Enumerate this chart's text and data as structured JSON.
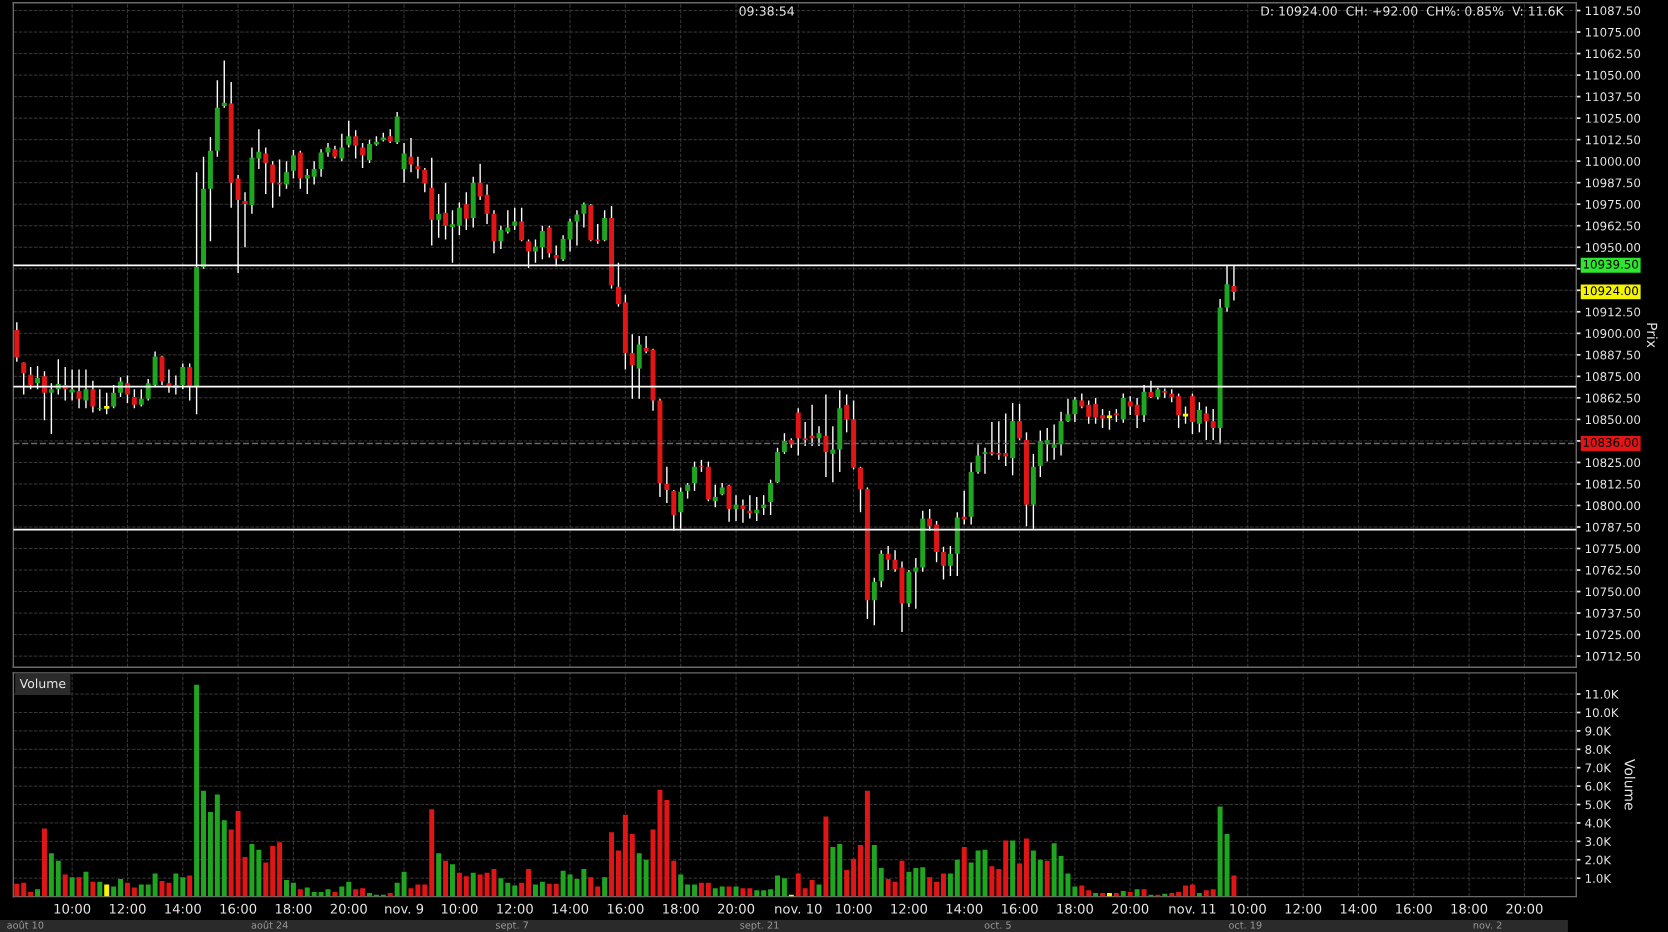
{
  "chart_data": [
    {
      "type": "candlestick",
      "categories": [
        null,
        null,
        null,
        null,
        null,
        null,
        null,
        null,
        null,
        null,
        null,
        null,
        null,
        null,
        null,
        null,
        null,
        null,
        null,
        null,
        null,
        null,
        null,
        null,
        null,
        null,
        null,
        null,
        null,
        null,
        null,
        null,
        null,
        null,
        null,
        null,
        null,
        null,
        null,
        null,
        null,
        null,
        null,
        null,
        null,
        null,
        null,
        null,
        null,
        null,
        null,
        null,
        null,
        null,
        null,
        null,
        null,
        null,
        null,
        null,
        null,
        null,
        null,
        null,
        null,
        null,
        null,
        null,
        null,
        null,
        null,
        null,
        null,
        null,
        null,
        null,
        null,
        null,
        null,
        null,
        null,
        null,
        null,
        null,
        null,
        null,
        null,
        null,
        null,
        null,
        null,
        null,
        null,
        null,
        null,
        null,
        null,
        null,
        null,
        null,
        null,
        null,
        null,
        null,
        null,
        null,
        null,
        null,
        null,
        null,
        null,
        null,
        null,
        null,
        null,
        null,
        null,
        null,
        null,
        null,
        null,
        null,
        null,
        null,
        null,
        null,
        null,
        null,
        null,
        null,
        null,
        null,
        null,
        null,
        null,
        null,
        null,
        null,
        null,
        null,
        null,
        null,
        null,
        null,
        null,
        null,
        null,
        null,
        null,
        null,
        null,
        null,
        null,
        null,
        null,
        null,
        null,
        null,
        null,
        null,
        null,
        null,
        null,
        null,
        null,
        null,
        null,
        null,
        null,
        null,
        null,
        null,
        null,
        null,
        null,
        null,
        null,
        null,
        null,
        null,
        null,
        null,
        null,
        null,
        null,
        null,
        null,
        null,
        null,
        null,
        null,
        null,
        null,
        null,
        null,
        null,
        null,
        null,
        null,
        null,
        null,
        null,
        null,
        null,
        null,
        null,
        null,
        null,
        null,
        null,
        null,
        null,
        null,
        null,
        null,
        null,
        null,
        null,
        null,
        null,
        null,
        null,
        null,
        null,
        null,
        null
      ],
      "ohlc": [
        [
          10902,
          10906.5,
          10883.5,
          10886
        ],
        [
          10883,
          10883,
          10864.5,
          10877
        ],
        [
          10876,
          10880.5,
          10867.5,
          10870
        ],
        [
          10871,
          10881,
          10867.5,
          10874
        ],
        [
          10875,
          10878,
          10849.5,
          10865.5
        ],
        [
          10865.5,
          10871,
          10841.5,
          10867.5
        ],
        [
          10867.5,
          10885,
          10864.5,
          10870.5
        ],
        [
          10870,
          10880.5,
          10861,
          10867.5
        ],
        [
          10866.5,
          10879,
          10861,
          10866.5
        ],
        [
          10866.5,
          10879,
          10856.5,
          10862
        ],
        [
          10861,
          10879,
          10856.5,
          10867.5
        ],
        [
          10867.5,
          10872.5,
          10854,
          10857.5
        ],
        [
          10856,
          10867.5,
          10855,
          10856.5
        ],
        [
          10857,
          10865.5,
          10853,
          10857
        ],
        [
          10857.5,
          10870,
          10856.5,
          10865.5
        ],
        [
          10865.5,
          10874.5,
          10863,
          10872
        ],
        [
          10871,
          10875.5,
          10859.5,
          10864.5
        ],
        [
          10863,
          10867.5,
          10856.5,
          10858.5
        ],
        [
          10858.5,
          10867.5,
          10857.5,
          10862
        ],
        [
          10862,
          10873.5,
          10861,
          10871
        ],
        [
          10870,
          10889.5,
          10869,
          10886.5
        ],
        [
          10886.5,
          10887,
          10870,
          10872
        ],
        [
          10871,
          10879,
          10865.5,
          10869
        ],
        [
          10869,
          10875.5,
          10864.5,
          10869
        ],
        [
          10870,
          10882.5,
          10867.5,
          10880.5
        ],
        [
          10880.5,
          10882.5,
          10861,
          10869
        ],
        [
          10869,
          10993.5,
          10853,
          10938.5
        ],
        [
          10938.5,
          11002.5,
          10937.5,
          10984
        ],
        [
          10984,
          11014,
          10953.5,
          11006
        ],
        [
          11006,
          11047,
          11002.5,
          11031
        ],
        [
          11032,
          11058.5,
          11031,
          11034
        ],
        [
          11033.5,
          11046,
          10973,
          10987.5
        ],
        [
          10990,
          10992,
          10935,
          10977.5
        ],
        [
          10976,
          10982,
          10950,
          10976
        ],
        [
          10974.5,
          11008,
          10969.5,
          11002
        ],
        [
          11001.5,
          11018.5,
          10995.5,
          11005.5
        ],
        [
          11004.5,
          11008,
          10981,
          10999
        ],
        [
          10998,
          11000,
          10973,
          10987.5
        ],
        [
          10987.5,
          11001,
          10979.5,
          10986.5
        ],
        [
          10986.5,
          11000,
          10984,
          10993.5
        ],
        [
          10994.5,
          11006.5,
          10990,
          11003.5
        ],
        [
          11005,
          11006,
          10984,
          10990
        ],
        [
          10990,
          10995.5,
          10981,
          10992
        ],
        [
          10991,
          11000,
          10986.5,
          10995.5
        ],
        [
          10995.5,
          11007,
          10991,
          11005
        ],
        [
          11005,
          11010.5,
          11002.5,
          11008
        ],
        [
          11007,
          11009,
          11001.5,
          11002.5
        ],
        [
          11001.5,
          11016,
          11000,
          11008
        ],
        [
          11009.5,
          11023.5,
          11008,
          11014.5
        ],
        [
          11014.5,
          11018,
          11001.5,
          11009
        ],
        [
          11008,
          11010.5,
          10996,
          11003.5
        ],
        [
          11000.5,
          11012.5,
          10999,
          11010
        ],
        [
          11010.5,
          11014.5,
          11009,
          11010.5
        ],
        [
          11013,
          11016.5,
          11011.5,
          11013
        ],
        [
          11014.5,
          11018.5,
          11010.5,
          11011.5
        ],
        [
          11011,
          11028.5,
          11010,
          11026
        ],
        [
          10995.5,
          11010.5,
          10987.5,
          11004.5
        ],
        [
          11002.5,
          11013.5,
          10993.5,
          10998
        ],
        [
          10997,
          11002.5,
          10990,
          10995.5
        ],
        [
          10995,
          10996,
          10982,
          10987
        ],
        [
          10984.5,
          11002,
          10951,
          10966
        ],
        [
          10966,
          10981,
          10955.5,
          10969.5
        ],
        [
          10970,
          10987.5,
          10954.5,
          10962.5
        ],
        [
          10962.5,
          10971.5,
          10941,
          10962.5
        ],
        [
          10962.5,
          10976,
          10957,
          10973
        ],
        [
          10975,
          10982,
          10960,
          10966.5
        ],
        [
          10967,
          10991,
          10961.5,
          10987.5
        ],
        [
          10987.5,
          10998.5,
          10977.5,
          10979.5
        ],
        [
          10980.5,
          10986.5,
          10963.5,
          10969.5
        ],
        [
          10969.5,
          10971.5,
          10946.5,
          10953.5
        ],
        [
          10953.5,
          10962.5,
          10949,
          10960
        ],
        [
          10959,
          10971.5,
          10958,
          10961.5
        ],
        [
          10962.5,
          10973,
          10960,
          10965
        ],
        [
          10965,
          10973,
          10953.5,
          10954
        ],
        [
          10953.5,
          10954.5,
          10938,
          10947.5
        ],
        [
          10947.5,
          10954.5,
          10941,
          10950.5
        ],
        [
          10950,
          10962.5,
          10943,
          10959.5
        ],
        [
          10961.5,
          10962.5,
          10944,
          10946.5
        ],
        [
          10945.5,
          10951,
          10939,
          10943.5
        ],
        [
          10943,
          10957,
          10942,
          10955
        ],
        [
          10954.5,
          10966.5,
          10947.5,
          10965
        ],
        [
          10965,
          10971.5,
          10951,
          10969
        ],
        [
          10969.5,
          10976,
          10961.5,
          10975
        ],
        [
          10974.5,
          10975,
          10953.5,
          10954
        ],
        [
          10954.5,
          10963.5,
          10952,
          10953.5
        ],
        [
          10954,
          10971.5,
          10953.5,
          10967
        ],
        [
          10967,
          10974,
          10926,
          10928
        ],
        [
          10927,
          10941,
          10915.5,
          10917
        ],
        [
          10918,
          10922.5,
          10879,
          10888.5
        ],
        [
          10888.5,
          10899.5,
          10862,
          10881.5
        ],
        [
          10879.5,
          10898.5,
          10862,
          10893.5
        ],
        [
          10891.5,
          10898.5,
          10888.5,
          10889.5
        ],
        [
          10890.5,
          10891,
          10855,
          10861
        ],
        [
          10861,
          10862,
          10805,
          10813
        ],
        [
          10812.5,
          10822.5,
          10801.5,
          10809
        ],
        [
          10808.5,
          10809,
          10785.5,
          10794.5
        ],
        [
          10796,
          10810.5,
          10786.5,
          10808
        ],
        [
          10808.5,
          10813,
          10804,
          10812
        ],
        [
          10813,
          10825.5,
          10808.5,
          10822.5
        ],
        [
          10823,
          10826.5,
          10819.5,
          10822.5
        ],
        [
          10822.5,
          10825.5,
          10802.5,
          10803.5
        ],
        [
          10802.5,
          10812,
          10799,
          10805
        ],
        [
          10806.5,
          10813,
          10806,
          10810.5
        ],
        [
          10811.5,
          10812,
          10790.5,
          10798
        ],
        [
          10798,
          10806,
          10791,
          10800.5
        ],
        [
          10800,
          10803.5,
          10790,
          10798
        ],
        [
          10797,
          10806,
          10792.5,
          10795.5
        ],
        [
          10795.5,
          10805,
          10791,
          10797.5
        ],
        [
          10798.5,
          10806,
          10794.5,
          10800.5
        ],
        [
          10802,
          10815,
          10794.5,
          10813
        ],
        [
          10813.5,
          10833.5,
          10813,
          10831
        ],
        [
          10831,
          10842,
          10830,
          10837.5
        ],
        [
          10838,
          10839,
          10833.5,
          10835.5
        ],
        [
          10854,
          10856.5,
          10829,
          10839
        ],
        [
          10839,
          10848.5,
          10834.5,
          10838
        ],
        [
          10840.5,
          10858.5,
          10834.5,
          10839
        ],
        [
          10839,
          10846,
          10834.5,
          10842
        ],
        [
          10840.5,
          10864.5,
          10816.5,
          10831
        ],
        [
          10830,
          10846,
          10813.5,
          10832.5
        ],
        [
          10832.5,
          10867,
          10819.5,
          10856.5
        ],
        [
          10858.5,
          10864.5,
          10842.5,
          10850
        ],
        [
          10850,
          10861,
          10821,
          10822
        ],
        [
          10822,
          10822.5,
          10796,
          10809.5
        ],
        [
          10809.5,
          10810.5,
          10734,
          10745
        ],
        [
          10745,
          10758,
          10730.5,
          10755.5
        ],
        [
          10756,
          10774,
          10752.5,
          10772
        ],
        [
          10772,
          10776.5,
          10762.5,
          10768.5
        ],
        [
          10768.5,
          10774,
          10761.5,
          10763
        ],
        [
          10764,
          10767.5,
          10726.5,
          10743
        ],
        [
          10743,
          10762.5,
          10741,
          10761.5
        ],
        [
          10761.5,
          10769.5,
          10740,
          10764
        ],
        [
          10764,
          10797,
          10761.5,
          10792.5
        ],
        [
          10792.5,
          10798,
          10785.5,
          10788
        ],
        [
          10789,
          10791,
          10767,
          10773
        ],
        [
          10773,
          10776,
          10757,
          10765
        ],
        [
          10765,
          10776.5,
          10759,
          10772
        ],
        [
          10772,
          10796,
          10759,
          10793
        ],
        [
          10793.5,
          10808.5,
          10789,
          10792
        ],
        [
          10793.5,
          10825,
          10789,
          10819.5
        ],
        [
          10819.5,
          10835.5,
          10818.5,
          10829
        ],
        [
          10830,
          10833.5,
          10818.5,
          10831
        ],
        [
          10831,
          10848.5,
          10829,
          10830
        ],
        [
          10830.5,
          10849,
          10826.5,
          10829.5
        ],
        [
          10830.5,
          10853.5,
          10823,
          10828.5
        ],
        [
          10827.5,
          10859.5,
          10817.5,
          10849
        ],
        [
          10849,
          10859,
          10838,
          10839
        ],
        [
          10838,
          10842.5,
          10788,
          10800.5
        ],
        [
          10800.5,
          10830,
          10786.5,
          10822.5
        ],
        [
          10823,
          10843.5,
          10816.5,
          10837.5
        ],
        [
          10835.5,
          10845,
          10825.5,
          10838
        ],
        [
          10833.5,
          10847,
          10826.5,
          10835.5
        ],
        [
          10835.5,
          10854.5,
          10829,
          10849
        ],
        [
          10849,
          10862,
          10848.5,
          10853
        ],
        [
          10853,
          10863,
          10848.5,
          10861.5
        ],
        [
          10861,
          10865,
          10856.5,
          10857.5
        ],
        [
          10858.5,
          10861,
          10847.5,
          10851.5
        ],
        [
          10859,
          10862.5,
          10847.5,
          10851
        ],
        [
          10852.5,
          10856,
          10845,
          10850.5
        ],
        [
          10851.5,
          10855,
          10844,
          10851.5
        ],
        [
          10853.5,
          10856,
          10848.5,
          10852.5
        ],
        [
          10850,
          10865,
          10848,
          10862.5
        ],
        [
          10860.5,
          10863.5,
          10852.5,
          10857.5
        ],
        [
          10858.5,
          10862.5,
          10845,
          10852.5
        ],
        [
          10852.5,
          10870,
          10848.5,
          10866
        ],
        [
          10866,
          10872.5,
          10862.5,
          10863
        ],
        [
          10863,
          10868.5,
          10861.5,
          10867.5
        ],
        [
          10866.5,
          10868,
          10862.5,
          10865.5
        ],
        [
          10865,
          10867.5,
          10860,
          10863
        ],
        [
          10863.5,
          10865,
          10845,
          10852.5
        ],
        [
          10852.5,
          10857.5,
          10847.5,
          10852.5
        ],
        [
          10863.5,
          10865,
          10841.5,
          10848.5
        ],
        [
          10847.5,
          10860,
          10842.5,
          10855.5
        ],
        [
          10853.5,
          10857.5,
          10838,
          10849
        ],
        [
          10849,
          10856,
          10838,
          10845
        ],
        [
          10845,
          10920,
          10835.5,
          10915
        ],
        [
          10915,
          10939.5,
          10912.5,
          10928.5
        ],
        [
          10927.5,
          10939.5,
          10919,
          10924
        ],
        null,
        null,
        null,
        null,
        null,
        null,
        null,
        null,
        null,
        null,
        null,
        null,
        null,
        null,
        null,
        null,
        null,
        null,
        null,
        null,
        null,
        null,
        null,
        null,
        null,
        null,
        null,
        null,
        null,
        null,
        null,
        null,
        null,
        null,
        null,
        null,
        null,
        null,
        null,
        null,
        null,
        null,
        null,
        null,
        null,
        null,
        null,
        null,
        null
      ],
      "colors": [
        "#e01515",
        "#e01515",
        "#e01515",
        "#1fa51f",
        "#e01515",
        "#1fa51f",
        "#1fa51f",
        "#e01515",
        "#1fa51f",
        "#e01515",
        "#1fa51f",
        "#e01515",
        "#1fa51f",
        "#f5f500",
        "#1fa51f",
        "#1fa51f",
        "#e01515",
        "#e01515",
        "#1fa51f",
        "#1fa51f",
        "#1fa51f",
        "#e01515",
        "#e01515",
        "#1fa51f",
        "#1fa51f",
        "#e01515",
        "#1fa51f",
        "#1fa51f",
        "#1fa51f",
        "#1fa51f",
        "#1fa51f",
        "#e01515",
        "#e01515",
        "#e01515",
        "#1fa51f",
        "#1fa51f",
        "#e01515",
        "#e01515",
        "#e01515",
        "#1fa51f",
        "#1fa51f",
        "#e01515",
        "#1fa51f",
        "#1fa51f",
        "#1fa51f",
        "#1fa51f",
        "#e01515",
        "#1fa51f",
        "#1fa51f",
        "#e01515",
        "#e01515",
        "#1fa51f",
        "#1fa51f",
        "#1fa51f",
        "#e01515",
        "#1fa51f",
        "#1fa51f",
        "#e01515",
        "#e01515",
        "#e01515",
        "#e01515",
        "#1fa51f",
        "#e01515",
        "#1fa51f",
        "#1fa51f",
        "#e01515",
        "#1fa51f",
        "#e01515",
        "#e01515",
        "#e01515",
        "#1fa51f",
        "#1fa51f",
        "#1fa51f",
        "#e01515",
        "#e01515",
        "#1fa51f",
        "#1fa51f",
        "#e01515",
        "#e01515",
        "#1fa51f",
        "#1fa51f",
        "#1fa51f",
        "#1fa51f",
        "#e01515",
        "#e01515",
        "#1fa51f",
        "#e01515",
        "#e01515",
        "#e01515",
        "#e01515",
        "#1fa51f",
        "#e01515",
        "#e01515",
        "#e01515",
        "#e01515",
        "#e01515",
        "#1fa51f",
        "#1fa51f",
        "#1fa51f",
        "#e01515",
        "#e01515",
        "#1fa51f",
        "#1fa51f",
        "#e01515",
        "#1fa51f",
        "#e01515",
        "#e01515",
        "#1fa51f",
        "#1fa51f",
        "#1fa51f",
        "#1fa51f",
        "#1fa51f",
        "#e01515",
        "#e01515",
        "#e01515",
        "#e01515",
        "#1fa51f",
        "#e01515",
        "#1fa51f",
        "#1fa51f",
        "#e01515",
        "#e01515",
        "#e01515",
        "#e01515",
        "#1fa51f",
        "#1fa51f",
        "#e01515",
        "#e01515",
        "#e01515",
        "#1fa51f",
        "#1fa51f",
        "#1fa51f",
        "#e01515",
        "#e01515",
        "#e01515",
        "#1fa51f",
        "#1fa51f",
        "#e01515",
        "#1fa51f",
        "#1fa51f",
        "#1fa51f",
        "#e01515",
        "#e01515",
        "#e01515",
        "#1fa51f",
        "#e01515",
        "#e01515",
        "#1fa51f",
        "#1fa51f",
        "#1fa51f",
        "#1fa51f",
        "#1fa51f",
        "#1fa51f",
        "#1fa51f",
        "#e01515",
        "#e01515",
        "#e01515",
        "#e01515",
        "#f5f500",
        "#e01515",
        "#1fa51f",
        "#e01515",
        "#e01515",
        "#1fa51f",
        "#e01515",
        "#1fa51f",
        "#e01515",
        "#e01515",
        "#e01515",
        "#f5f500",
        "#e01515",
        "#1fa51f",
        "#e01515",
        "#e01515",
        "#1fa51f",
        "#1fa51f",
        "#e01515",
        null,
        null,
        null,
        null,
        null,
        null,
        null,
        null,
        null,
        null,
        null,
        null,
        null,
        null,
        null,
        null,
        null,
        null,
        null,
        null,
        null,
        null,
        null,
        null,
        null,
        null,
        null,
        null,
        null,
        null,
        null,
        null,
        null,
        null,
        null,
        null,
        null,
        null,
        null,
        null,
        null,
        null,
        null,
        null,
        null,
        null,
        null,
        null,
        null
      ],
      "ylim": [
        10706,
        11092
      ],
      "yticks": [
        {
          "value": 10712.5,
          "label": "10712.50"
        },
        {
          "value": 10725,
          "label": "10725.00"
        },
        {
          "value": 10737.5,
          "label": "10737.50"
        },
        {
          "value": 10750,
          "label": "10750.00"
        },
        {
          "value": 10762.5,
          "label": "10762.50"
        },
        {
          "value": 10775,
          "label": "10775.00"
        },
        {
          "value": 10787.5,
          "label": "10787.50"
        },
        {
          "value": 10800,
          "label": "10800.00"
        },
        {
          "value": 10812.5,
          "label": "10812.50"
        },
        {
          "value": 10825,
          "label": "10825.00"
        },
        {
          "value": 10837.5,
          "label": null
        },
        {
          "value": 10850,
          "label": "10850.00"
        },
        {
          "value": 10862.5,
          "label": "10862.50"
        },
        {
          "value": 10875,
          "label": "10875.00"
        },
        {
          "value": 10887.5,
          "label": "10887.50"
        },
        {
          "value": 10900,
          "label": "10900.00"
        },
        {
          "value": 10912.5,
          "label": "10912.50"
        },
        {
          "value": 10925,
          "label": null
        },
        {
          "value": 10937.5,
          "label": null
        },
        {
          "value": 10950,
          "label": "10950.00"
        },
        {
          "value": 10962.5,
          "label": "10962.50"
        },
        {
          "value": 10975,
          "label": "10975.00"
        },
        {
          "value": 10987.5,
          "label": "10987.50"
        },
        {
          "value": 11000,
          "label": "11000.00"
        },
        {
          "value": 11012.5,
          "label": "11012.50"
        },
        {
          "value": 11025,
          "label": "11025.00"
        },
        {
          "value": 11037.5,
          "label": "11037.50"
        },
        {
          "value": 11050,
          "label": "11050.00"
        },
        {
          "value": 11062.5,
          "label": "11062.50"
        },
        {
          "value": 11075,
          "label": "11075.00"
        },
        {
          "value": 11087.5,
          "label": "11087.50"
        }
      ],
      "ylabel": "Prix",
      "grid": true,
      "tick_labels": "y",
      "ref_lines": [
        {
          "axis": "y",
          "value": 10939.5,
          "label": "10939.50",
          "color": "#ffffff",
          "line_style": "solid"
        },
        {
          "axis": "y",
          "value": 10869,
          "color": "#ffffff",
          "line_style": "solid"
        },
        {
          "axis": "y",
          "value": 10786,
          "color": "#ffffff",
          "line_style": "solid"
        },
        {
          "axis": "y",
          "value": 10836,
          "label": "10836.00",
          "color": "#6a6a6a",
          "line_style": "dashed"
        }
      ],
      "annotations": [
        "09:38:54",
        "D: 10924.00  CH: +92.00  CH%: 0.85%  V: 11.6K",
        "10924.00"
      ]
    },
    {
      "type": "bar",
      "title": "Volume",
      "categories": [
        null,
        null,
        null,
        null,
        null,
        null,
        null,
        null,
        "10:00",
        null,
        null,
        null,
        null,
        null,
        null,
        null,
        "12:00",
        null,
        null,
        null,
        null,
        null,
        null,
        null,
        "14:00",
        null,
        null,
        null,
        null,
        null,
        null,
        null,
        "16:00",
        null,
        null,
        null,
        null,
        null,
        null,
        null,
        "18:00",
        null,
        null,
        null,
        null,
        null,
        null,
        null,
        "20:00",
        null,
        null,
        null,
        null,
        null,
        null,
        null,
        "nov. 9",
        null,
        null,
        null,
        null,
        null,
        null,
        null,
        "10:00",
        null,
        null,
        null,
        null,
        null,
        null,
        null,
        "12:00",
        null,
        null,
        null,
        null,
        null,
        null,
        null,
        "14:00",
        null,
        null,
        null,
        null,
        null,
        null,
        null,
        "16:00",
        null,
        null,
        null,
        null,
        null,
        null,
        null,
        "18:00",
        null,
        null,
        null,
        null,
        null,
        null,
        null,
        "20:00",
        null,
        null,
        null,
        null,
        null,
        null,
        null,
        null,
        "nov. 10",
        null,
        null,
        null,
        null,
        null,
        null,
        null,
        "10:00",
        null,
        null,
        null,
        null,
        null,
        null,
        null,
        "12:00",
        null,
        null,
        null,
        null,
        null,
        null,
        null,
        "14:00",
        null,
        null,
        null,
        null,
        null,
        null,
        null,
        "16:00",
        null,
        null,
        null,
        null,
        null,
        null,
        null,
        "18:00",
        null,
        null,
        null,
        null,
        null,
        null,
        null,
        "20:00",
        null,
        null,
        null,
        null,
        null,
        null,
        null,
        null,
        "nov. 11",
        null,
        null,
        null,
        null,
        null,
        null,
        null,
        "10:00",
        null,
        null,
        null,
        null,
        null,
        null,
        null,
        "12:00",
        null,
        null,
        null,
        null,
        null,
        null,
        null,
        "14:00",
        null,
        null,
        null,
        null,
        null,
        null,
        null,
        "16:00",
        null,
        null,
        null,
        null,
        null,
        null,
        null,
        "18:00",
        null,
        null,
        null,
        null,
        null,
        null,
        null,
        "20:00",
        null,
        null,
        null,
        null,
        null,
        null,
        null
      ],
      "values": [
        700,
        750,
        250,
        400,
        3700,
        2350,
        1950,
        1200,
        1050,
        1050,
        1350,
        800,
        800,
        650,
        550,
        950,
        750,
        500,
        650,
        650,
        1250,
        850,
        750,
        1250,
        1050,
        1150,
        11500,
        5750,
        4600,
        5550,
        4150,
        3650,
        4650,
        2150,
        2850,
        2550,
        1850,
        2750,
        2950,
        900,
        750,
        400,
        500,
        250,
        250,
        400,
        250,
        550,
        800,
        400,
        450,
        200,
        100,
        100,
        200,
        750,
        1350,
        450,
        650,
        650,
        4750,
        2350,
        1950,
        1750,
        1300,
        1100,
        1300,
        1200,
        1300,
        1500,
        1000,
        750,
        600,
        750,
        1500,
        650,
        800,
        700,
        700,
        1400,
        1200,
        950,
        1500,
        1050,
        550,
        1050,
        3500,
        2500,
        4450,
        3400,
        2350,
        2000,
        3650,
        5800,
        5250,
        1950,
        1200,
        650,
        650,
        750,
        750,
        450,
        550,
        550,
        550,
        450,
        450,
        350,
        350,
        400,
        1150,
        1000,
        100,
        1250,
        450,
        900,
        650,
        4350,
        2700,
        2850,
        1450,
        2050,
        2800,
        5750,
        2800,
        1550,
        950,
        800,
        1950,
        1350,
        1550,
        1600,
        1050,
        800,
        1250,
        1250,
        2000,
        2700,
        1850,
        2500,
        2550,
        1650,
        1500,
        3050,
        3050,
        1800,
        3150,
        2500,
        2000,
        1950,
        2900,
        2200,
        1250,
        550,
        600,
        350,
        200,
        200,
        200,
        200,
        300,
        250,
        400,
        400,
        100,
        100,
        150,
        200,
        250,
        600,
        650,
        200,
        350,
        400,
        4900,
        3400,
        1150,
        null,
        null,
        null,
        null,
        null,
        null,
        null,
        null,
        null,
        null,
        null,
        null,
        null,
        null,
        null,
        null,
        null,
        null,
        null,
        null,
        null,
        null,
        null,
        null,
        null,
        null,
        null,
        null,
        null,
        null,
        null,
        null,
        null,
        null,
        null,
        null,
        null,
        null,
        null,
        null,
        null,
        null,
        null,
        null,
        null,
        null,
        null,
        null,
        null
      ],
      "colors": [
        "#e01515",
        "#e01515",
        "#e01515",
        "#1fa51f",
        "#e01515",
        "#1fa51f",
        "#1fa51f",
        "#e01515",
        "#1fa51f",
        "#e01515",
        "#1fa51f",
        "#e01515",
        "#1fa51f",
        "#f5f500",
        "#1fa51f",
        "#1fa51f",
        "#e01515",
        "#e01515",
        "#1fa51f",
        "#1fa51f",
        "#1fa51f",
        "#e01515",
        "#e01515",
        "#1fa51f",
        "#1fa51f",
        "#e01515",
        "#1fa51f",
        "#1fa51f",
        "#1fa51f",
        "#1fa51f",
        "#1fa51f",
        "#e01515",
        "#e01515",
        "#e01515",
        "#1fa51f",
        "#1fa51f",
        "#e01515",
        "#e01515",
        "#e01515",
        "#1fa51f",
        "#1fa51f",
        "#e01515",
        "#1fa51f",
        "#1fa51f",
        "#1fa51f",
        "#1fa51f",
        "#e01515",
        "#1fa51f",
        "#1fa51f",
        "#e01515",
        "#e01515",
        "#1fa51f",
        "#1fa51f",
        "#1fa51f",
        "#e01515",
        "#1fa51f",
        "#1fa51f",
        "#e01515",
        "#e01515",
        "#e01515",
        "#e01515",
        "#1fa51f",
        "#e01515",
        "#1fa51f",
        "#e01515",
        "#e01515",
        "#1fa51f",
        "#e01515",
        "#e01515",
        "#e01515",
        "#1fa51f",
        "#1fa51f",
        "#1fa51f",
        "#e01515",
        "#e01515",
        "#1fa51f",
        "#1fa51f",
        "#e01515",
        "#e01515",
        "#1fa51f",
        "#1fa51f",
        "#1fa51f",
        "#1fa51f",
        "#e01515",
        "#e01515",
        "#1fa51f",
        "#e01515",
        "#e01515",
        "#e01515",
        "#e01515",
        "#1fa51f",
        "#1fa51f",
        "#e01515",
        "#e01515",
        "#e01515",
        "#e01515",
        "#1fa51f",
        "#1fa51f",
        "#1fa51f",
        "#e01515",
        "#e01515",
        "#1fa51f",
        "#1fa51f",
        "#e01515",
        "#1fa51f",
        "#e01515",
        "#e01515",
        "#1fa51f",
        "#1fa51f",
        "#1fa51f",
        "#1fa51f",
        "#1fa51f",
        "#f5f500",
        "#e01515",
        "#e01515",
        "#e01515",
        "#1fa51f",
        "#e01515",
        "#1fa51f",
        "#1fa51f",
        "#e01515",
        "#e01515",
        "#e01515",
        "#e01515",
        "#1fa51f",
        "#1fa51f",
        "#e01515",
        "#e01515",
        "#e01515",
        "#1fa51f",
        "#1fa51f",
        "#1fa51f",
        "#e01515",
        "#e01515",
        "#e01515",
        "#1fa51f",
        "#1fa51f",
        "#e01515",
        "#1fa51f",
        "#1fa51f",
        "#1fa51f",
        "#e01515",
        "#e01515",
        "#e01515",
        "#1fa51f",
        "#e01515",
        "#e01515",
        "#1fa51f",
        "#1fa51f",
        "#e01515",
        "#1fa51f",
        "#1fa51f",
        "#1fa51f",
        "#1fa51f",
        "#e01515",
        "#e01515",
        "#1fa51f",
        "#e01515",
        "#f5f500",
        "#e01515",
        "#1fa51f",
        "#e01515",
        "#1fa51f",
        "#e01515",
        "#1fa51f",
        "#e01515",
        "#1fa51f",
        "#e01515",
        "#e01515",
        "#e01515",
        "#e01515",
        "#1fa51f",
        "#e01515",
        "#e01515",
        "#1fa51f",
        "#1fa51f",
        "#e01515",
        null,
        null,
        null,
        null,
        null,
        null,
        null,
        null,
        null,
        null,
        null,
        null,
        null,
        null,
        null,
        null,
        null,
        null,
        null,
        null,
        null,
        null,
        null,
        null,
        null,
        null,
        null,
        null,
        null,
        null,
        null,
        null,
        null,
        null,
        null,
        null,
        null,
        null,
        null,
        null,
        null,
        null,
        null,
        null,
        null,
        null,
        null,
        null,
        null
      ],
      "ylim": [
        0,
        12150
      ],
      "yticks": [
        {
          "value": 1000,
          "label": "1.0K"
        },
        {
          "value": 2000,
          "label": "2.0K"
        },
        {
          "value": 3000,
          "label": "3.0K"
        },
        {
          "value": 4000,
          "label": "4.0K"
        },
        {
          "value": 5000,
          "label": "5.0K"
        },
        {
          "value": 6000,
          "label": "6.0K"
        },
        {
          "value": 7000,
          "label": "7.0K"
        },
        {
          "value": 8000,
          "label": "8.0K"
        },
        {
          "value": 9000,
          "label": "9.0K"
        },
        {
          "value": 10000,
          "label": "10.0K"
        },
        {
          "value": 11000,
          "label": "11.0K"
        }
      ],
      "ylabel": "Volume",
      "grid": true,
      "annotations": [
        "août 10",
        "août 24",
        "sept. 7",
        "sept. 21",
        "oct. 5",
        "oct. 19",
        "nov. 2"
      ]
    }
  ]
}
